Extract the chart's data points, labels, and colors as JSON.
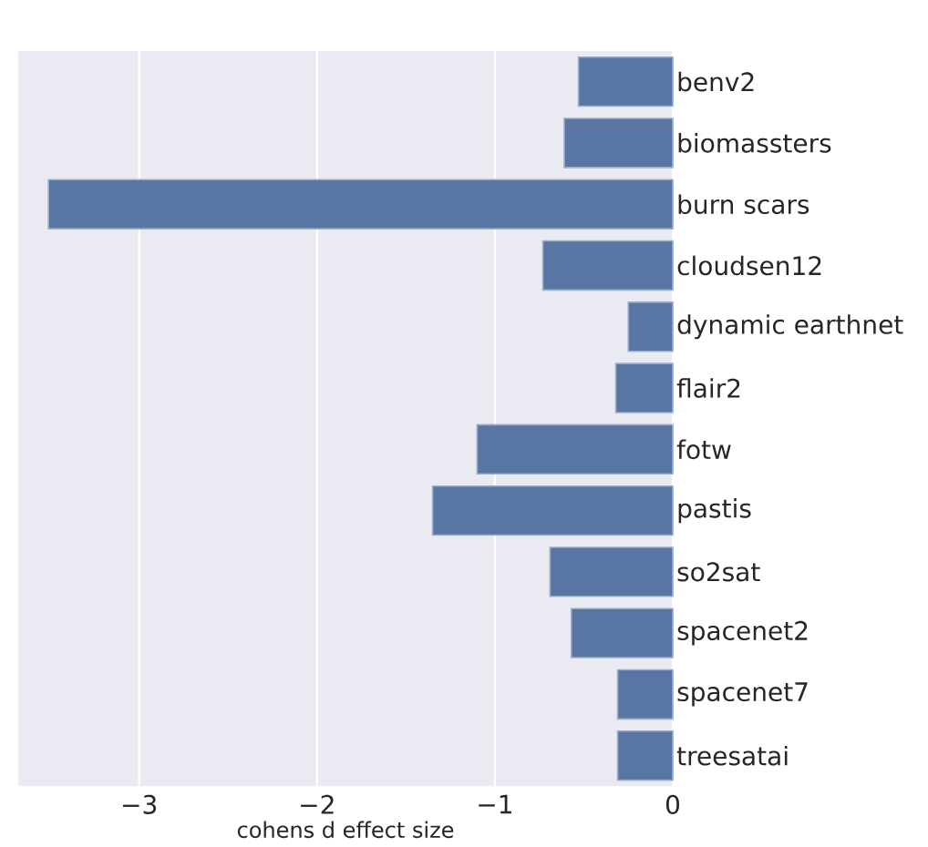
{
  "chart_data": {
    "type": "bar",
    "orientation": "horizontal",
    "xlabel": "cohens d effect size",
    "categories": [
      "benv2",
      "biomassters",
      "burn scars",
      "cloudsen12",
      "dynamic earthnet",
      "flair2",
      "fotw",
      "pastis",
      "so2sat",
      "spacenet2",
      "spacenet7",
      "treesatai"
    ],
    "values": [
      -0.53,
      -0.61,
      -3.51,
      -0.73,
      -0.25,
      -0.32,
      -1.1,
      -1.35,
      -0.69,
      -0.57,
      -0.31,
      -0.31
    ],
    "color": "#5975a4",
    "xlim": [
      -3.68,
      0
    ],
    "xticks": [
      {
        "value": -3,
        "label": "−3"
      },
      {
        "value": -2,
        "label": "−2"
      },
      {
        "value": -1,
        "label": "−1"
      },
      {
        "value": 0,
        "label": "0"
      }
    ],
    "grid": "x"
  }
}
